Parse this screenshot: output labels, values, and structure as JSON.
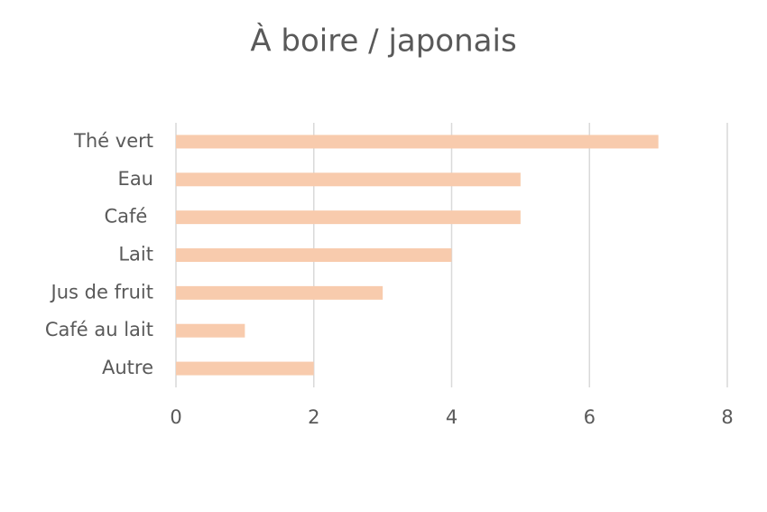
{
  "chart_data": {
    "type": "bar",
    "orientation": "horizontal",
    "title": "À boire / japonais",
    "categories": [
      "Thé vert",
      "Eau",
      "Café ",
      "Lait",
      "Jus de fruit",
      "Café au lait",
      "Autre"
    ],
    "values": [
      7,
      5,
      5,
      4,
      3,
      1,
      2
    ],
    "color": "#f8cbad",
    "xlim": [
      0,
      8
    ],
    "xticks": [
      0,
      2,
      4,
      6,
      8
    ],
    "grid": true
  }
}
